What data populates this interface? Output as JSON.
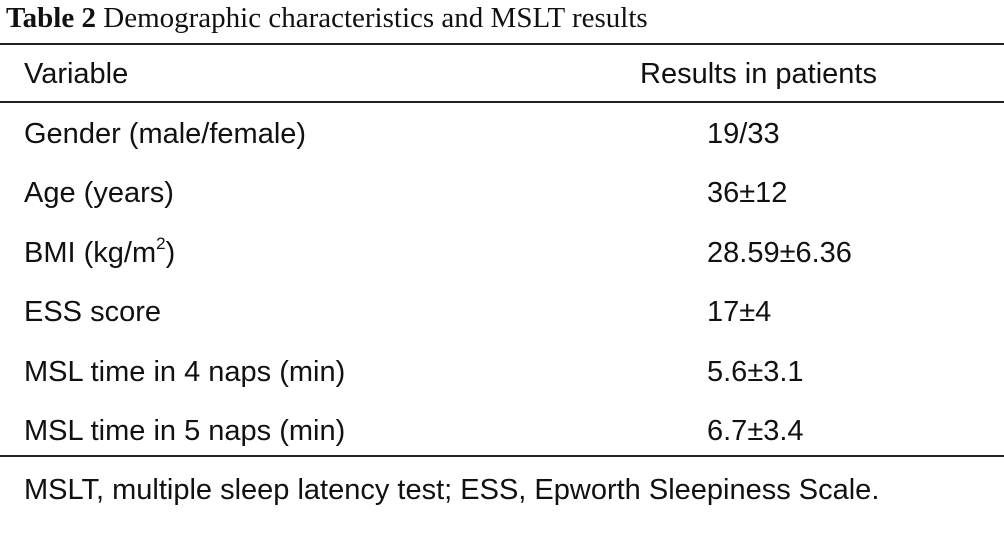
{
  "caption": {
    "label": "Table 2",
    "title": "Demographic characteristics and MSLT results"
  },
  "table": {
    "headers": [
      "Variable",
      "Results in patients"
    ],
    "rows": [
      {
        "variable": "Gender (male/female)",
        "result": "19/33"
      },
      {
        "variable": "Age (years)",
        "result": "36±12"
      },
      {
        "variable_prefix": "BMI (kg/m",
        "variable_sup": "2",
        "variable_suffix": ")",
        "result": "28.59±6.36"
      },
      {
        "variable": "ESS score",
        "result": "17±4"
      },
      {
        "variable": "MSL time in 4 naps (min)",
        "result": "5.6±3.1"
      },
      {
        "variable": "MSL time in 5 naps (min)",
        "result": "6.7±3.4"
      }
    ]
  },
  "footnote": "MSLT, multiple sleep latency test; ESS, Epworth Sleepiness Scale."
}
